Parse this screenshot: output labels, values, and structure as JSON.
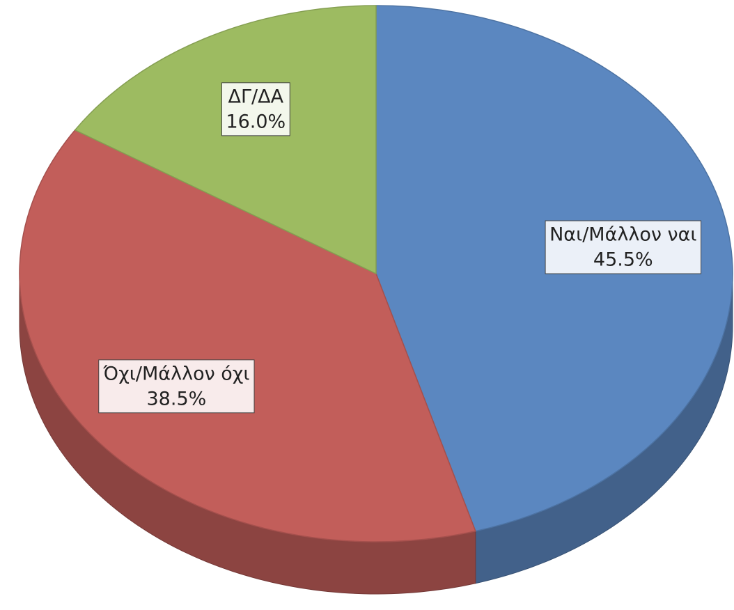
{
  "chart_data": {
    "type": "pie",
    "categories": [
      "Ναι/Μάλλον ναι",
      "Όχι/Μάλλον όχι",
      "ΔΓ/ΔΑ"
    ],
    "values": [
      45.5,
      38.5,
      16.0
    ],
    "value_labels": [
      "45.5%",
      "38.5%",
      "16.0%"
    ],
    "colors": [
      "#5b87c0",
      "#c25e5a",
      "#9dbb61"
    ]
  }
}
